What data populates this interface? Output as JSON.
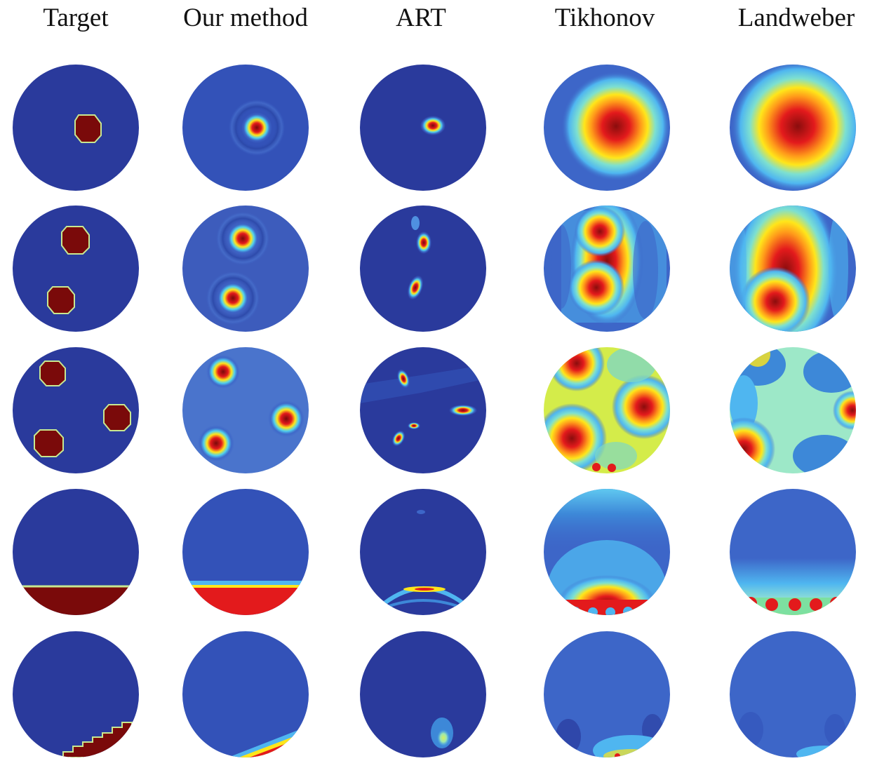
{
  "columns": [
    "Target",
    "Our method",
    "ART",
    "Tikhonov",
    "Landweber"
  ],
  "rows": [
    "single inclusion",
    "two inclusions",
    "three inclusions",
    "horizontal bottom layer",
    "inclined bottom layer"
  ],
  "colors": {
    "background": "#2a3a9c",
    "deep_red": "#7a0a0a",
    "red": "#e31a1c",
    "yellow": "#ffe61a",
    "cyan": "#4fd0f0",
    "mid_blue": "#3d66c8"
  }
}
